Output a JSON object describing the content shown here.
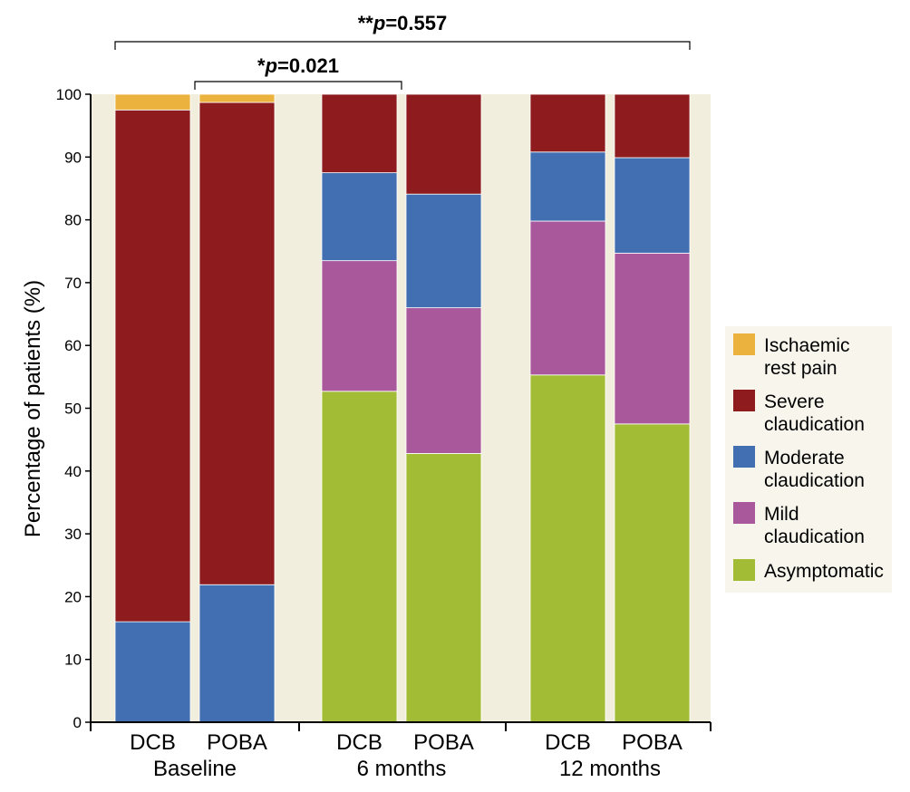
{
  "chart_data": {
    "type": "bar",
    "stacked": true,
    "ylabel": "Percentage of patients (%)",
    "ylim": [
      0,
      100
    ],
    "yticks": [
      "0",
      "10",
      "20",
      "30",
      "40",
      "50",
      "60",
      "70",
      "80",
      "90",
      "100"
    ],
    "categories": [
      "DCB",
      "POBA",
      "DCB",
      "POBA",
      "DCB",
      "POBA"
    ],
    "groups": [
      "Baseline",
      "6 months",
      "12 months"
    ],
    "series": [
      {
        "name": "Asymptomatic",
        "color": "#a2bd35",
        "values": [
          0,
          0,
          52.7,
          42.8,
          55.3,
          47.5
        ]
      },
      {
        "name": "Mild claudication",
        "color": "#a9599b",
        "values": [
          0,
          0,
          20.8,
          23.2,
          24.5,
          27.2
        ]
      },
      {
        "name": "Moderate claudication",
        "color": "#416fb2",
        "values": [
          16.0,
          21.9,
          14.0,
          18.1,
          11.0,
          15.2
        ]
      },
      {
        "name": "Severe claudication",
        "color": "#8e1b1d",
        "values": [
          81.5,
          76.8,
          12.5,
          15.9,
          9.2,
          10.1
        ]
      },
      {
        "name": "Ischaemic rest pain",
        "color": "#ebb23e",
        "values": [
          2.5,
          1.3,
          0,
          0,
          0,
          0
        ]
      }
    ],
    "legend": {
      "position": "right",
      "entries": [
        {
          "line1": "Ischaemic",
          "line2": "rest pain",
          "color": "#ebb23e"
        },
        {
          "line1": "Severe",
          "line2": "claudication",
          "color": "#8e1b1d"
        },
        {
          "line1": "Moderate",
          "line2": "claudication",
          "color": "#416fb2"
        },
        {
          "line1": "Mild",
          "line2": "claudication",
          "color": "#a9599b"
        },
        {
          "line1": "Asymptomatic",
          "line2": "",
          "color": "#a2bd35"
        }
      ]
    },
    "annotations": [
      {
        "stars": "*",
        "p": "p",
        "rest": "=0.021",
        "from_bar": 1,
        "to_bar": 2
      },
      {
        "stars": "**",
        "p": "p",
        "rest": "=0.557",
        "from_bar": 0,
        "to_bar": 5
      }
    ],
    "colors": {
      "plot_background": "#f2eedd",
      "legend_background": "#f7f5ec"
    }
  }
}
